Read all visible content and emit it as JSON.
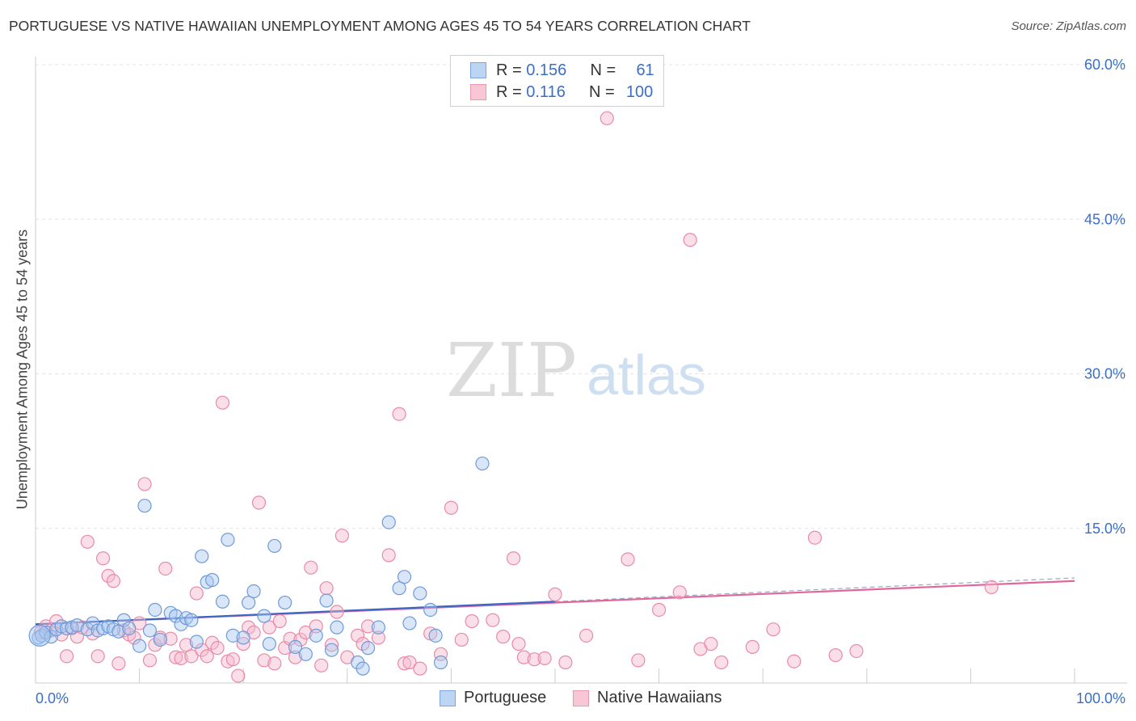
{
  "title": "PORTUGUESE VS NATIVE HAWAIIAN UNEMPLOYMENT AMONG AGES 45 TO 54 YEARS CORRELATION CHART",
  "source": "Source: ZipAtlas.com",
  "watermark": {
    "zip": "ZIP",
    "atlas": "atlas"
  },
  "legend": {
    "portuguese": {
      "r_label": "R = ",
      "r_value": "0.156",
      "n_label": "N = ",
      "n_value": "61"
    },
    "hawaiian": {
      "r_label": "R = ",
      "r_value": "0.116",
      "n_label": "N = ",
      "n_value": "100"
    }
  },
  "colors": {
    "blue_fill": "#a8c8f0",
    "blue_stroke": "#6f9ad9",
    "blue_line": "#3a66c4",
    "pink_fill": "#f7b8cc",
    "pink_stroke": "#e88aa8",
    "pink_line": "#e0679a",
    "tick_label": "#3b6fc7",
    "grid": "#e3e3e3"
  },
  "chart_data": {
    "type": "scatter",
    "title": "PORTUGUESE VS NATIVE HAWAIIAN UNEMPLOYMENT AMONG AGES 45 TO 54 YEARS CORRELATION CHART",
    "xlabel": "",
    "ylabel": "Unemployment Among Ages 45 to 54 years",
    "xlim": [
      0,
      100
    ],
    "ylim": [
      0,
      63
    ],
    "x_tick_labels": [
      "0.0%",
      "100.0%"
    ],
    "y_ticks": [
      15,
      30,
      45,
      60
    ],
    "y_tick_labels": [
      "15.0%",
      "30.0%",
      "45.0%",
      "60.0%"
    ],
    "series": [
      {
        "name": "Portuguese",
        "x": [
          0.3,
          0.6,
          1.0,
          1.5,
          2.0,
          2.5,
          3.0,
          3.5,
          4.0,
          5.0,
          5.5,
          6.0,
          6.5,
          7.0,
          7.5,
          8.0,
          8.5,
          9.0,
          10.0,
          10.5,
          11.0,
          11.5,
          12.0,
          13.0,
          13.5,
          14.0,
          14.5,
          15.0,
          15.5,
          16.0,
          16.5,
          17.0,
          18.0,
          18.5,
          19.0,
          20.0,
          20.5,
          21.0,
          22.0,
          22.5,
          23.0,
          24.0,
          25.0,
          26.0,
          27.0,
          28.0,
          28.5,
          29.0,
          31.0,
          31.5,
          32.0,
          33.0,
          34.0,
          35.0,
          35.5,
          36.0,
          37.0,
          38.0,
          38.5,
          39.0,
          43.0
        ],
        "y": [
          4.4,
          4.6,
          4.9,
          4.5,
          5.2,
          5.5,
          5.3,
          5.4,
          5.6,
          5.2,
          5.8,
          5.1,
          5.3,
          5.5,
          5.2,
          5.0,
          6.1,
          5.3,
          3.6,
          17.2,
          5.1,
          7.1,
          4.2,
          6.8,
          6.5,
          5.7,
          6.3,
          6.1,
          4.0,
          12.3,
          9.8,
          10.0,
          7.9,
          13.9,
          4.6,
          4.4,
          7.8,
          8.9,
          6.5,
          3.8,
          13.3,
          7.8,
          3.5,
          2.8,
          4.6,
          8.0,
          3.2,
          5.4,
          2.0,
          1.4,
          3.4,
          5.4,
          15.6,
          9.2,
          10.3,
          5.8,
          8.7,
          7.1,
          4.6,
          2.0,
          21.3
        ]
      },
      {
        "name": "Native Hawaiians",
        "x": [
          0.5,
          1.0,
          1.5,
          2.0,
          2.5,
          3.0,
          3.5,
          4.0,
          4.5,
          5.0,
          5.5,
          6.0,
          6.5,
          7.0,
          7.5,
          8.0,
          8.5,
          9.0,
          9.5,
          10.0,
          10.5,
          11.0,
          11.5,
          12.0,
          12.5,
          13.0,
          13.5,
          14.0,
          14.5,
          15.0,
          15.5,
          16.0,
          16.5,
          17.0,
          17.5,
          18.0,
          18.5,
          19.0,
          19.5,
          20.0,
          20.5,
          21.0,
          21.5,
          22.0,
          22.5,
          23.0,
          23.5,
          24.0,
          24.5,
          25.0,
          25.5,
          26.0,
          26.5,
          27.0,
          27.5,
          28.0,
          28.5,
          29.0,
          29.5,
          30.0,
          31.0,
          31.5,
          32.0,
          33.0,
          34.0,
          35.0,
          35.5,
          36.0,
          37.0,
          38.0,
          39.0,
          40.0,
          41.0,
          42.0,
          44.0,
          45.0,
          46.0,
          46.5,
          47.0,
          48.0,
          49.0,
          50.0,
          51.0,
          53.0,
          55.0,
          57.0,
          58.0,
          60.0,
          62.0,
          63.0,
          64.0,
          65.0,
          66.0,
          69.0,
          71.0,
          73.0,
          75.0,
          77.0,
          79.0,
          92.0
        ],
        "y": [
          4.9,
          5.5,
          5.1,
          6.0,
          4.7,
          2.6,
          5.3,
          4.5,
          5.4,
          13.7,
          4.8,
          2.6,
          12.1,
          10.4,
          9.9,
          1.9,
          5.1,
          4.7,
          4.4,
          5.8,
          19.3,
          2.2,
          3.7,
          4.4,
          11.1,
          4.3,
          2.5,
          2.4,
          3.7,
          2.6,
          8.7,
          3.2,
          2.6,
          3.9,
          3.4,
          27.2,
          2.1,
          2.3,
          0.7,
          3.8,
          5.4,
          4.9,
          17.5,
          2.2,
          5.4,
          1.9,
          6.0,
          3.4,
          4.3,
          2.5,
          4.2,
          4.9,
          11.2,
          5.5,
          1.7,
          9.2,
          3.7,
          6.9,
          14.3,
          2.5,
          4.6,
          3.8,
          5.5,
          4.4,
          12.4,
          26.1,
          1.9,
          2.0,
          1.4,
          4.8,
          2.8,
          17.0,
          4.2,
          6.0,
          6.1,
          4.5,
          12.1,
          3.8,
          2.5,
          2.3,
          2.4,
          8.6,
          2.0,
          4.6,
          54.8,
          12.0,
          2.2,
          7.1,
          8.8,
          43.0,
          3.3,
          3.8,
          2.0,
          3.5,
          5.2,
          2.1,
          14.1,
          2.7,
          3.1,
          9.3
        ]
      }
    ],
    "trend_lines": [
      {
        "series": "Portuguese",
        "x": [
          0,
          50
        ],
        "y": [
          5.7,
          7.9
        ],
        "dashed_extension": {
          "x": [
            50,
            100
          ],
          "y": [
            7.9,
            10.2
          ]
        }
      },
      {
        "series": "Native Hawaiians",
        "x": [
          0,
          100
        ],
        "y": [
          5.7,
          9.9
        ]
      }
    ]
  }
}
